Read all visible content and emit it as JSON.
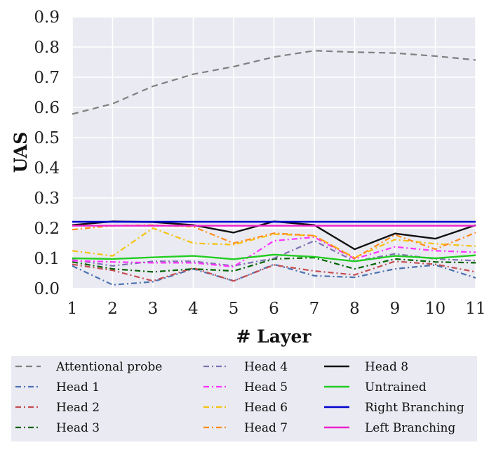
{
  "chart_data": {
    "type": "line",
    "title": "",
    "xlabel": "# Layer",
    "ylabel": "UAS",
    "x": [
      1,
      2,
      3,
      4,
      5,
      6,
      7,
      8,
      9,
      10,
      11
    ],
    "xlim": [
      1,
      11
    ],
    "ylim": [
      0.0,
      0.9
    ],
    "xticks": [
      "1",
      "2",
      "3",
      "4",
      "5",
      "6",
      "7",
      "8",
      "9",
      "10",
      "11"
    ],
    "yticks": [
      "0.0",
      "0.1",
      "0.2",
      "0.3",
      "0.4",
      "0.5",
      "0.6",
      "0.7",
      "0.8",
      "0.9"
    ],
    "grid": true,
    "legend_position": "bottom",
    "series": [
      {
        "name": "Attentional probe",
        "color": "#808080",
        "style": "dashed",
        "values": [
          0.578,
          0.612,
          0.67,
          0.71,
          0.735,
          0.767,
          0.788,
          0.783,
          0.78,
          0.77,
          0.757
        ]
      },
      {
        "name": "Head 1",
        "color": "#4c72b0",
        "style": "dashdot",
        "values": [
          0.075,
          0.012,
          0.022,
          0.065,
          0.025,
          0.08,
          0.042,
          0.037,
          0.065,
          0.078,
          0.035
        ]
      },
      {
        "name": "Head 2",
        "color": "#c44e52",
        "style": "dashdot",
        "values": [
          0.08,
          0.06,
          0.025,
          0.068,
          0.025,
          0.078,
          0.058,
          0.045,
          0.09,
          0.08,
          0.055
        ]
      },
      {
        "name": "Head 3",
        "color": "#006400",
        "style": "dashdot",
        "values": [
          0.088,
          0.065,
          0.055,
          0.065,
          0.058,
          0.098,
          0.102,
          0.065,
          0.098,
          0.088,
          0.085
        ]
      },
      {
        "name": "Head 4",
        "color": "#8172b2",
        "style": "dashdot",
        "values": [
          0.095,
          0.075,
          0.09,
          0.09,
          0.075,
          0.1,
          0.158,
          0.09,
          0.115,
          0.098,
          0.092
        ]
      },
      {
        "name": "Head 5",
        "color": "#ff33ff",
        "style": "dashdot",
        "values": [
          0.092,
          0.088,
          0.085,
          0.085,
          0.072,
          0.158,
          0.17,
          0.098,
          0.138,
          0.125,
          0.12
        ]
      },
      {
        "name": "Head 6",
        "color": "#f5c211",
        "style": "dashdot",
        "values": [
          0.125,
          0.108,
          0.2,
          0.15,
          0.145,
          0.18,
          0.175,
          0.102,
          0.162,
          0.148,
          0.14
        ]
      },
      {
        "name": "Head 7",
        "color": "#ff8c1a",
        "style": "dashdot",
        "values": [
          0.195,
          0.208,
          0.21,
          0.205,
          0.15,
          0.183,
          0.175,
          0.1,
          0.178,
          0.13,
          0.185
        ]
      },
      {
        "name": "Head 8",
        "color": "#111111",
        "style": "solid",
        "values": [
          0.21,
          0.222,
          0.22,
          0.21,
          0.185,
          0.222,
          0.21,
          0.13,
          0.182,
          0.165,
          0.21
        ]
      },
      {
        "name": "Untrained",
        "color": "#22cc22",
        "style": "solid",
        "values": [
          0.1,
          0.098,
          0.103,
          0.108,
          0.097,
          0.112,
          0.105,
          0.09,
          0.108,
          0.1,
          0.11
        ]
      },
      {
        "name": "Right Branching",
        "color": "#0000cc",
        "style": "solid",
        "values": [
          0.221,
          0.221,
          0.221,
          0.221,
          0.221,
          0.221,
          0.221,
          0.221,
          0.221,
          0.221,
          0.221
        ]
      },
      {
        "name": "Left Branching",
        "color": "#ee22cc",
        "style": "solid",
        "values": [
          0.208,
          0.208,
          0.208,
          0.208,
          0.208,
          0.208,
          0.208,
          0.208,
          0.208,
          0.208,
          0.208
        ]
      }
    ]
  }
}
